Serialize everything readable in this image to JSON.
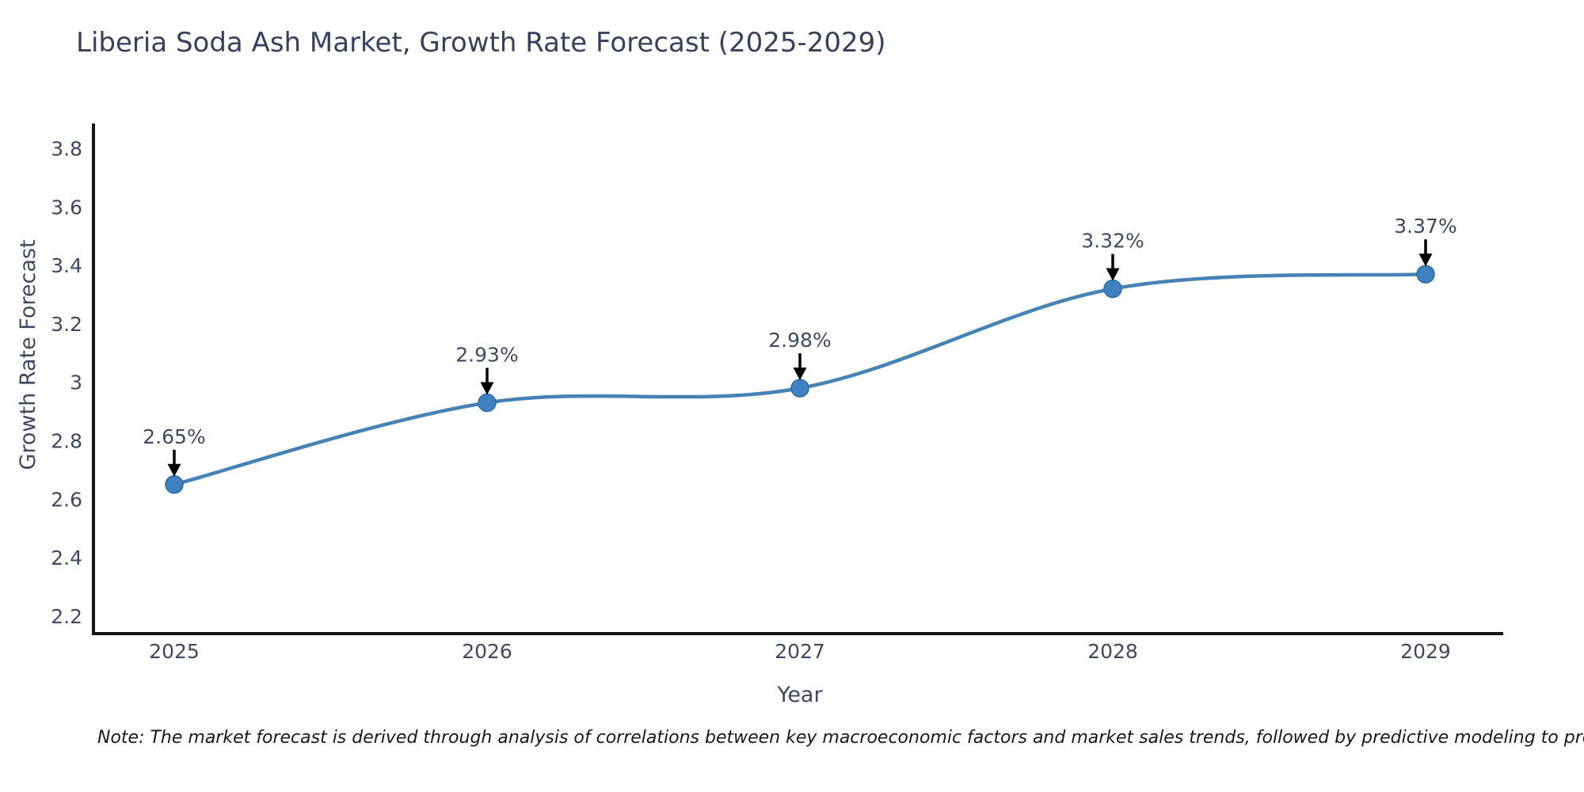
{
  "chart_data": {
    "type": "line",
    "title": "Liberia Soda Ash Market, Growth Rate Forecast (2025-2029)",
    "xlabel": "Year",
    "ylabel": "Growth Rate Forecast",
    "categories": [
      "2025",
      "2026",
      "2027",
      "2028",
      "2029"
    ],
    "values": [
      2.65,
      2.93,
      2.98,
      3.32,
      3.37
    ],
    "point_labels": [
      "2.65%",
      "2.93%",
      "2.98%",
      "3.32%",
      "3.37%"
    ],
    "yticks": [
      2.2,
      2.4,
      2.6,
      2.8,
      3,
      3.2,
      3.4,
      3.6,
      3.8
    ],
    "ylim": [
      2.14,
      3.88
    ],
    "grid": false,
    "legend_position": "none",
    "curve": "spline",
    "line_color": "#4682b4",
    "marker_color": "#3f80c1",
    "marker_edge_color": "#2e6ca5",
    "annotation_color": "#000000",
    "axis_color": "#141414",
    "text_color": "#3d4961"
  },
  "note": {
    "text": "Note: The market forecast is derived through analysis of correlations between key macroeconomic factors and market sales trends, followed by predictive modeling to project future sales"
  }
}
